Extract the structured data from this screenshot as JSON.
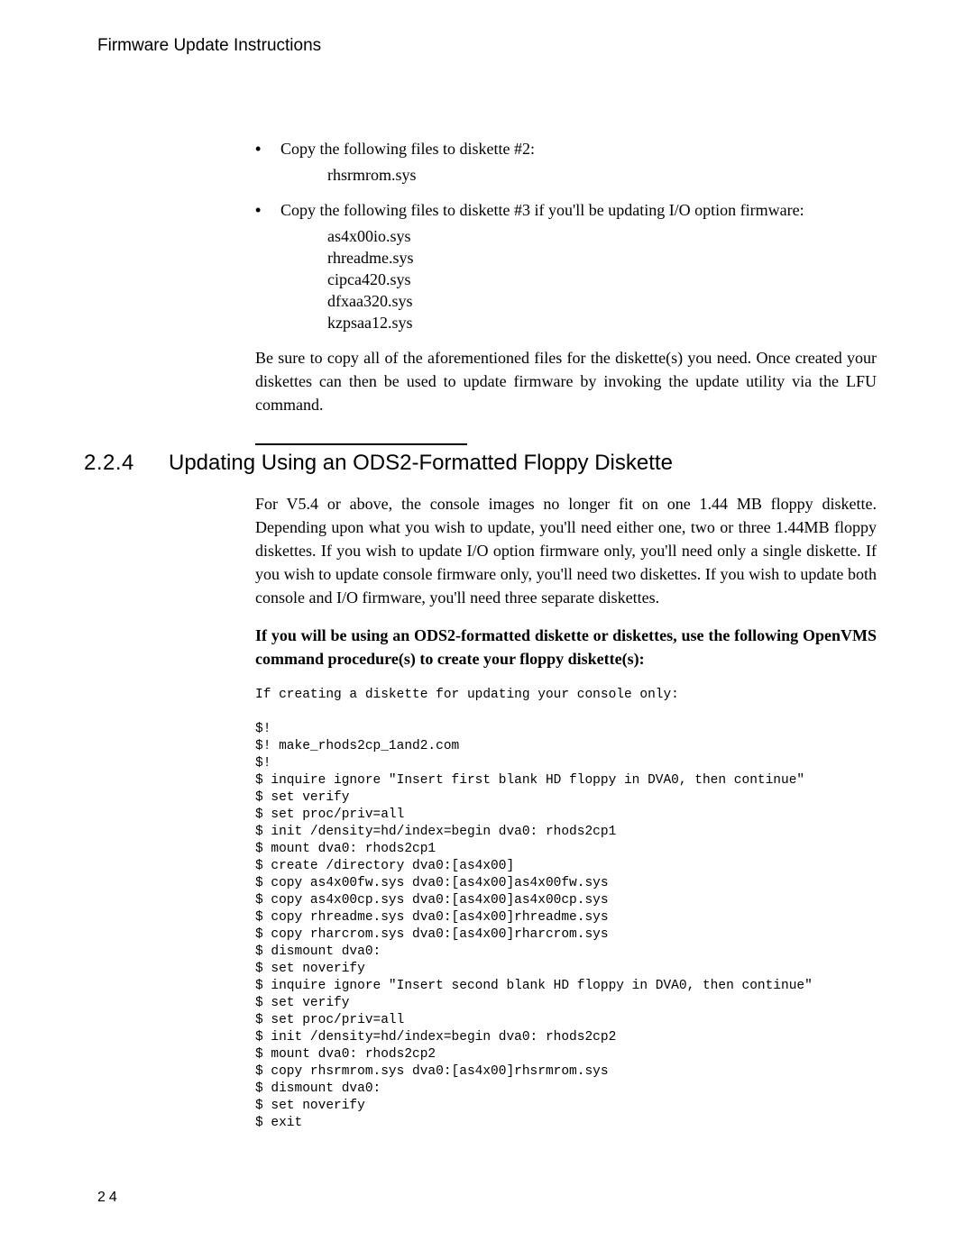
{
  "running_header": "Firmware Update Instructions",
  "bullets": [
    {
      "text": "Copy the following files to diskette #2:",
      "files": [
        "rhsrmrom.sys"
      ]
    },
    {
      "text": "Copy the following files to diskette #3 if you'll be updating I/O option firmware:",
      "files": [
        "as4x00io.sys",
        "rhreadme.sys",
        "cipca420.sys",
        "dfxaa320.sys",
        "kzpsaa12.sys"
      ]
    }
  ],
  "after_bullets_para": "Be sure to copy all of the aforementioned files for the diskette(s) you need. Once created your diskettes can then be used to update firmware by invoking the update utility via the LFU command.",
  "section": {
    "number": "2.2.4",
    "title": "Updating Using an ODS2-Formatted Floppy Diskette"
  },
  "para1": "For V5.4 or above, the console images no longer fit on one 1.44 MB floppy diskette. Depending upon what you wish to update, you'll need either one, two or three 1.44MB floppy diskettes. If you wish to update I/O option firmware only, you'll need only a single diskette. If you wish to update console firmware only, you'll need two diskettes. If you wish to update both console and I/O firmware, you'll need three separate diskettes.",
  "para2_bold": "If you will be using an ODS2-formatted diskette or diskettes, use the following OpenVMS command procedure(s) to create your floppy diskette(s):",
  "code_intro": "If creating a diskette for updating your console only:",
  "code_lines": [
    "$!",
    "$! make_rhods2cp_1and2.com",
    "$!",
    "$ inquire ignore \"Insert first blank HD floppy in DVA0, then continue\"",
    "$ set verify",
    "$ set proc/priv=all",
    "$ init /density=hd/index=begin dva0: rhods2cp1",
    "$ mount dva0: rhods2cp1",
    "$ create /directory dva0:[as4x00]",
    "$ copy as4x00fw.sys dva0:[as4x00]as4x00fw.sys",
    "$ copy as4x00cp.sys dva0:[as4x00]as4x00cp.sys",
    "$ copy rhreadme.sys dva0:[as4x00]rhreadme.sys",
    "$ copy rharcrom.sys dva0:[as4x00]rharcrom.sys",
    "$ dismount dva0:",
    "$ set noverify",
    "$ inquire ignore \"Insert second blank HD floppy in DVA0, then continue\"",
    "$ set verify",
    "$ set proc/priv=all",
    "$ init /density=hd/index=begin dva0: rhods2cp2",
    "$ mount dva0: rhods2cp2",
    "$ copy rhsrmrom.sys dva0:[as4x00]rhsrmrom.sys",
    "$ dismount dva0:",
    "$ set noverify",
    "$ exit"
  ],
  "page_number": "24",
  "colors": {
    "text": "#000000",
    "background": "#ffffff"
  },
  "fonts": {
    "sans": "Helvetica Neue, Helvetica, Arial, sans-serif",
    "serif": "Century Schoolbook, New Century Schoolbook, Georgia, serif",
    "mono": "Courier New, Courier, monospace"
  }
}
